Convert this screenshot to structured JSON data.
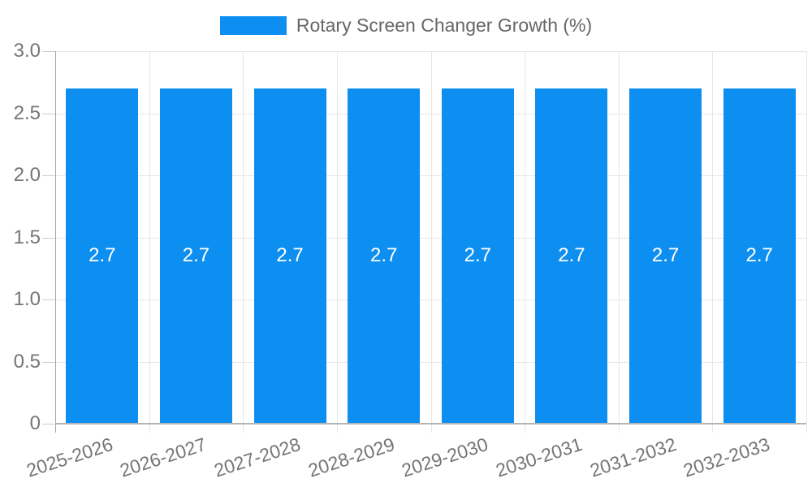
{
  "chart_data": {
    "type": "bar",
    "title": "",
    "legend": {
      "label": "Rotary Screen Changer Growth (%)",
      "position": "top"
    },
    "categories": [
      "2025-2026",
      "2026-2027",
      "2027-2028",
      "2028-2029",
      "2029-2030",
      "2030-2031",
      "2031-2032",
      "2032-2033"
    ],
    "series": [
      {
        "name": "Rotary Screen Changer Growth (%)",
        "values": [
          2.7,
          2.7,
          2.7,
          2.7,
          2.7,
          2.7,
          2.7,
          2.7
        ],
        "data_labels": [
          "2.7",
          "2.7",
          "2.7",
          "2.7",
          "2.7",
          "2.7",
          "2.7",
          "2.7"
        ]
      }
    ],
    "xlabel": "",
    "ylabel": "",
    "ylim": [
      0,
      3
    ],
    "yticks": [
      0,
      0.5,
      1.0,
      1.5,
      2.0,
      2.5,
      3.0
    ],
    "ytick_labels": [
      "0",
      "0.5",
      "1.0",
      "1.5",
      "2.0",
      "2.5",
      "3.0"
    ],
    "grid": true,
    "colors": {
      "bar": "#0d8ff2",
      "bar_label_text": "#ffffff",
      "gridline": "#e6e6e6",
      "axis_line": "#a6a6a6",
      "baseline": "#b5b5b5",
      "tick_text": "#757575",
      "legend_text": "#666666",
      "background": "#ffffff"
    }
  }
}
